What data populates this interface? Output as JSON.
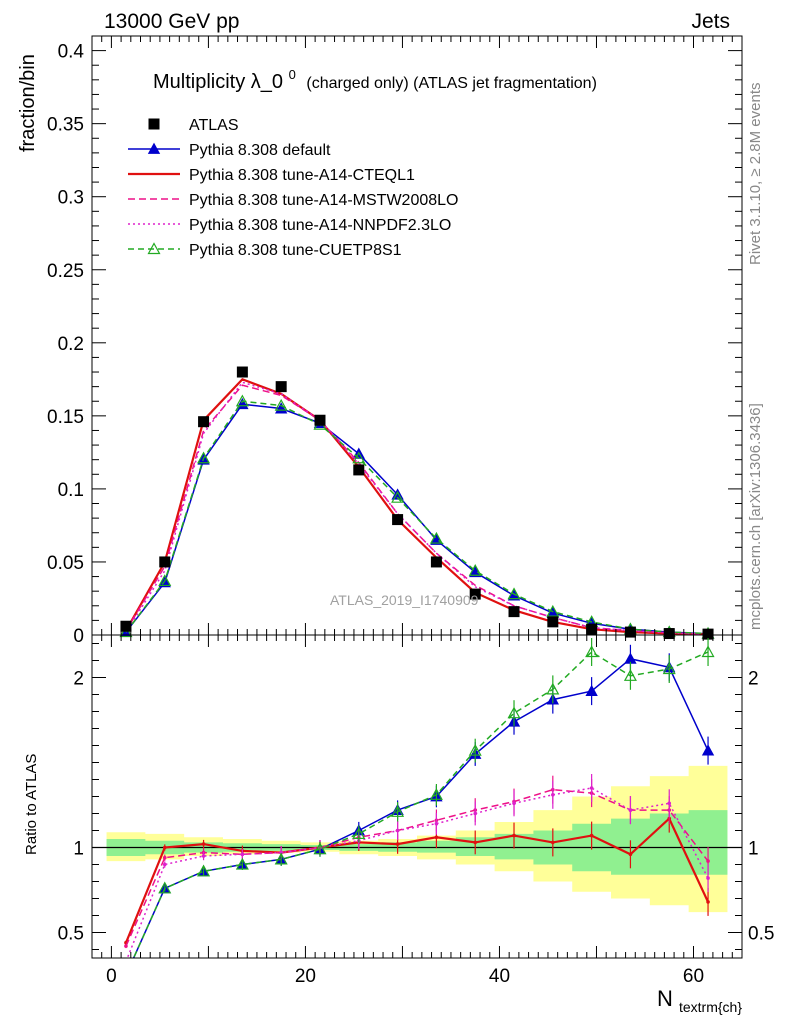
{
  "header": {
    "left": "13000 GeV pp",
    "right": "Jets"
  },
  "side_labels": {
    "rivet": "Rivet 3.1.10, ≥ 2.8M events",
    "mcplots": "mcplots.cern.ch [arXiv:1306.3436]"
  },
  "chart_data": [
    {
      "panel": "main",
      "type": "line",
      "title_main": "Multiplicity λ_0",
      "title_sup": "0",
      "title_rest": "(charged only) (ATLAS jet fragmentation)",
      "ylabel": "fraction/bin",
      "xlabel": "",
      "watermark": "ATLAS_2019_I1740909",
      "xlim": [
        -2,
        65
      ],
      "ylim": [
        0,
        0.41
      ],
      "xticks": [
        "0",
        "20",
        "40",
        "60"
      ],
      "yticks": [
        "0",
        "0.05",
        "0.1",
        "0.15",
        "0.2",
        "0.25",
        "0.3",
        "0.35",
        "0.4"
      ],
      "x": [
        1.5,
        5.5,
        9.5,
        13.5,
        17.5,
        21.5,
        25.5,
        29.5,
        33.5,
        37.5,
        41.5,
        45.5,
        49.5,
        53.5,
        57.5,
        61.5
      ],
      "legend_position": "top-left",
      "series": [
        {
          "name": "ATLAS",
          "values": [
            0.006,
            0.05,
            0.146,
            0.18,
            0.17,
            0.147,
            0.113,
            0.079,
            0.05,
            0.028,
            0.016,
            0.009,
            0.004,
            0.002,
            0.001,
            0.0006
          ]
        },
        {
          "name": "Pythia 8.308 default",
          "values": [
            0.002,
            0.036,
            0.12,
            0.158,
            0.155,
            0.145,
            0.124,
            0.096,
            0.065,
            0.043,
            0.027,
            0.015,
            0.008,
            0.004,
            0.002,
            0.0008
          ]
        },
        {
          "name": "Pythia 8.308 tune-A14-CTEQL1",
          "values": [
            0.003,
            0.05,
            0.147,
            0.175,
            0.165,
            0.147,
            0.115,
            0.079,
            0.053,
            0.029,
            0.017,
            0.009,
            0.004,
            0.002,
            0.001,
            0.0005
          ]
        },
        {
          "name": "Pythia 8.308 tune-A14-MSTW2008LO",
          "values": [
            0.003,
            0.047,
            0.14,
            0.171,
            0.164,
            0.147,
            0.118,
            0.083,
            0.056,
            0.034,
            0.02,
            0.012,
            0.005,
            0.003,
            0.0015,
            0.0005
          ]
        },
        {
          "name": "Pythia 8.308 tune-A14-NNPDF2.3LO",
          "values": [
            0.002,
            0.044,
            0.138,
            0.173,
            0.165,
            0.147,
            0.117,
            0.083,
            0.056,
            0.033,
            0.02,
            0.012,
            0.005,
            0.003,
            0.0015,
            0.0005
          ]
        },
        {
          "name": "Pythia 8.308 tune-CUETP8S1",
          "values": [
            0.002,
            0.037,
            0.121,
            0.16,
            0.157,
            0.144,
            0.121,
            0.094,
            0.066,
            0.044,
            0.028,
            0.016,
            0.009,
            0.004,
            0.002,
            0.001
          ]
        }
      ]
    },
    {
      "panel": "ratio",
      "type": "line",
      "ylabel": "Ratio to ATLAS",
      "xlabel": "N",
      "xlabel_sub": "textrm{ch}",
      "ylim": [
        0.35,
        2.25
      ],
      "xticks": [
        "0",
        "20",
        "40",
        "60"
      ],
      "yticks": [
        "0.5",
        "1",
        "2"
      ],
      "x": [
        1.5,
        5.5,
        9.5,
        13.5,
        17.5,
        21.5,
        25.5,
        29.5,
        33.5,
        37.5,
        41.5,
        45.5,
        49.5,
        53.5,
        57.5,
        61.5
      ],
      "bands": {
        "stat_lo": [
          0.95,
          0.96,
          0.97,
          0.975,
          0.98,
          0.985,
          0.98,
          0.975,
          0.97,
          0.95,
          0.93,
          0.9,
          0.86,
          0.84,
          0.84,
          0.84
        ],
        "stat_hi": [
          1.05,
          1.04,
          1.03,
          1.025,
          1.02,
          1.015,
          1.02,
          1.03,
          1.04,
          1.06,
          1.08,
          1.1,
          1.14,
          1.17,
          1.2,
          1.22
        ],
        "total_lo": [
          0.92,
          0.93,
          0.95,
          0.96,
          0.97,
          0.975,
          0.96,
          0.95,
          0.93,
          0.9,
          0.86,
          0.8,
          0.74,
          0.7,
          0.66,
          0.62
        ],
        "total_hi": [
          1.09,
          1.08,
          1.06,
          1.05,
          1.04,
          1.03,
          1.04,
          1.05,
          1.07,
          1.1,
          1.15,
          1.22,
          1.3,
          1.36,
          1.42,
          1.48
        ]
      },
      "series": [
        {
          "name": "Pythia 8.308 default",
          "values": [
            0.25,
            0.76,
            0.86,
            0.9,
            0.93,
            0.99,
            1.1,
            1.22,
            1.3,
            1.55,
            1.74,
            1.87,
            1.92,
            2.11,
            2.06,
            1.57
          ]
        },
        {
          "name": "Pythia 8.308 tune-A14-CTEQL1",
          "values": [
            0.44,
            1.0,
            1.02,
            0.98,
            0.97,
            1.0,
            1.03,
            1.02,
            1.06,
            1.03,
            1.07,
            1.03,
            1.07,
            0.96,
            1.17,
            0.68
          ]
        },
        {
          "name": "Pythia 8.308 tune-A14-MSTW2008LO",
          "values": [
            0.42,
            0.94,
            0.97,
            0.96,
            0.97,
            1.0,
            1.06,
            1.1,
            1.16,
            1.22,
            1.27,
            1.34,
            1.32,
            1.22,
            1.22,
            0.92
          ]
        },
        {
          "name": "Pythia 8.308 tune-A14-NNPDF2.3LO",
          "values": [
            0.33,
            0.9,
            0.95,
            0.96,
            0.97,
            1.0,
            1.04,
            1.1,
            1.14,
            1.2,
            1.26,
            1.31,
            1.35,
            1.22,
            1.26,
            0.82
          ]
        },
        {
          "name": "Pythia 8.308 tune-CUETP8S1",
          "values": [
            0.25,
            0.76,
            0.86,
            0.9,
            0.93,
            0.99,
            1.08,
            1.21,
            1.31,
            1.57,
            1.79,
            1.93,
            2.15,
            2.01,
            2.05,
            2.15
          ]
        }
      ]
    }
  ],
  "styles": {
    "ATLAS": {
      "color": "#000000",
      "dash": "",
      "marker": "square"
    },
    "Pythia 8.308 default": {
      "color": "#0000cc",
      "dash": "",
      "marker": "triangle"
    },
    "Pythia 8.308 tune-A14-CTEQL1": {
      "color": "#e01010",
      "dash": "",
      "marker": "none"
    },
    "Pythia 8.308 tune-A14-MSTW2008LO": {
      "color": "#ee1188",
      "dash": "7,4",
      "marker": "none"
    },
    "Pythia 8.308 tune-A14-NNPDF2.3LO": {
      "color": "#dd22cc",
      "dash": "2,3",
      "marker": "none"
    },
    "Pythia 8.308 tune-CUETP8S1": {
      "color": "#22aa22",
      "dash": "6,4",
      "marker": "triangle-open"
    }
  },
  "band_colors": {
    "stat": "#90f090",
    "total": "#ffff99"
  }
}
